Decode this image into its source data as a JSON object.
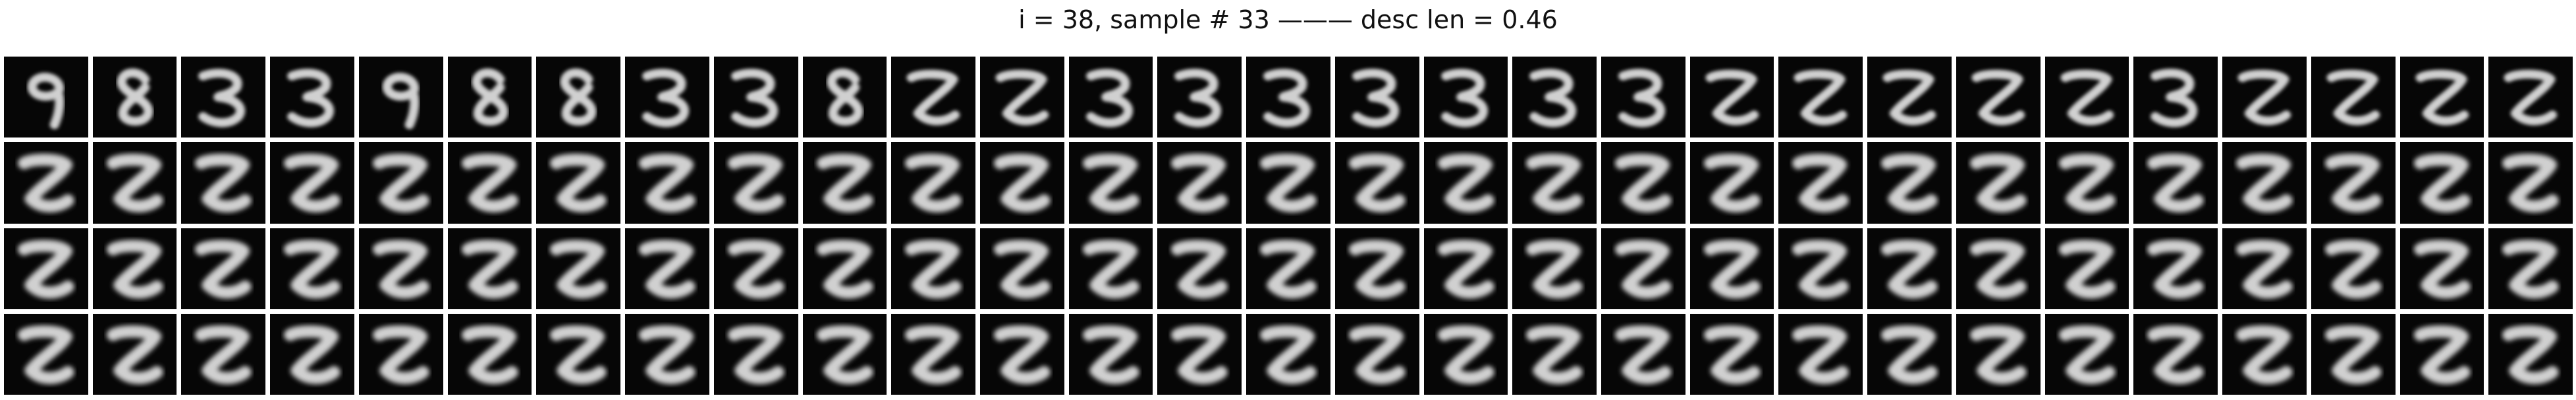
{
  "title": "i = 38, sample # 33 ——— desc len = 0.46",
  "grid": {
    "rows": 4,
    "cols": 29,
    "row_digits": [
      [
        "9",
        "8",
        "3",
        "3",
        "9",
        "8",
        "8",
        "3",
        "3",
        "8",
        "Z",
        "Z",
        "3",
        "3",
        "3",
        "3",
        "3",
        "3",
        "3",
        "Z",
        "Z",
        "Z",
        "Z",
        "Z",
        "3",
        "Z",
        "Z",
        "Z",
        "Z"
      ],
      [
        "Z",
        "Z",
        "Z",
        "Z",
        "Z",
        "Z",
        "Z",
        "Z",
        "Z",
        "Z",
        "Z",
        "Z",
        "Z",
        "Z",
        "Z",
        "Z",
        "Z",
        "Z",
        "Z",
        "Z",
        "Z",
        "Z",
        "Z",
        "Z",
        "Z",
        "Z",
        "Z",
        "Z",
        "Z"
      ],
      [
        "Z",
        "Z",
        "Z",
        "Z",
        "Z",
        "Z",
        "Z",
        "Z",
        "Z",
        "Z",
        "Z",
        "Z",
        "Z",
        "Z",
        "Z",
        "Z",
        "Z",
        "Z",
        "Z",
        "Z",
        "Z",
        "Z",
        "Z",
        "Z",
        "Z",
        "Z",
        "Z",
        "Z",
        "Z"
      ],
      [
        "Z",
        "Z",
        "Z",
        "Z",
        "Z",
        "Z",
        "Z",
        "Z",
        "Z",
        "Z",
        "Z",
        "Z",
        "Z",
        "Z",
        "Z",
        "Z",
        "Z",
        "Z",
        "Z",
        "Z",
        "Z",
        "Z",
        "Z",
        "Z",
        "Z",
        "Z",
        "Z",
        "Z",
        "Z"
      ]
    ]
  },
  "colors": {
    "background": "#ffffff",
    "tile": "#060606",
    "stroke": "#e2e2e2"
  }
}
